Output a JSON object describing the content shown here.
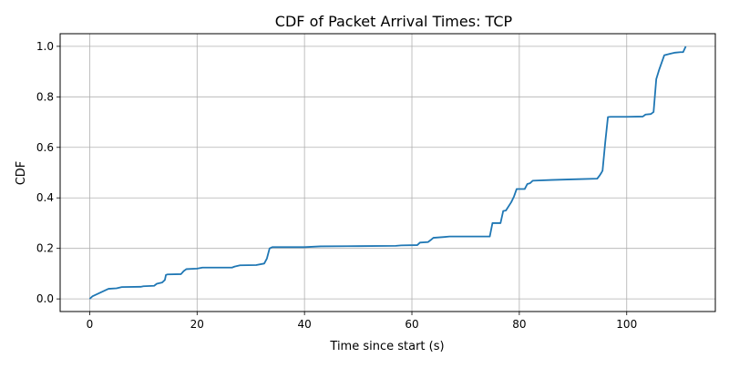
{
  "chart_data": {
    "type": "line",
    "title": "CDF of Packet Arrival Times: TCP",
    "xlabel": "Time since start (s)",
    "ylabel": "CDF",
    "xlim": [
      -5.5,
      116.5
    ],
    "ylim": [
      -0.05,
      1.05
    ],
    "x_ticks": [
      0,
      20,
      40,
      60,
      80,
      100
    ],
    "x_tick_labels": [
      "0",
      "20",
      "40",
      "60",
      "80",
      "100"
    ],
    "y_ticks": [
      0.0,
      0.2,
      0.4,
      0.6,
      0.8,
      1.0
    ],
    "y_tick_labels": [
      "0.0",
      "0.2",
      "0.4",
      "0.6",
      "0.8",
      "1.0"
    ],
    "grid": true,
    "legend": "none",
    "line_color": "#1f77b4",
    "series": [
      {
        "x": [
          0,
          0.5,
          1,
          2,
          3,
          3.5,
          5,
          6,
          9.5,
          10,
          12,
          12.5,
          13.5,
          14,
          14.2,
          14.5,
          17,
          17.5,
          18,
          20,
          21,
          26.5,
          27,
          28,
          31,
          32.5,
          33,
          33.5,
          34,
          40,
          43,
          50,
          57,
          58,
          61,
          61.5,
          63,
          63.5,
          64,
          66,
          67,
          74.5,
          75,
          76.5,
          77,
          77.5,
          78.5,
          79,
          79.5,
          81,
          81.5,
          82,
          82.5,
          86,
          91,
          94.5,
          95,
          95.3,
          95.5,
          96,
          96.5,
          97,
          100,
          103,
          103.5,
          104.5,
          105,
          105.5,
          106,
          107,
          108,
          109,
          110,
          110.5,
          111
        ],
        "y": [
          0.0,
          0.01,
          0.015,
          0.025,
          0.035,
          0.04,
          0.042,
          0.047,
          0.048,
          0.05,
          0.052,
          0.06,
          0.065,
          0.075,
          0.095,
          0.097,
          0.098,
          0.11,
          0.118,
          0.12,
          0.124,
          0.124,
          0.128,
          0.133,
          0.134,
          0.14,
          0.16,
          0.2,
          0.205,
          0.205,
          0.208,
          0.209,
          0.21,
          0.212,
          0.213,
          0.223,
          0.225,
          0.233,
          0.242,
          0.245,
          0.247,
          0.247,
          0.3,
          0.3,
          0.348,
          0.35,
          0.383,
          0.405,
          0.435,
          0.435,
          0.455,
          0.458,
          0.468,
          0.471,
          0.474,
          0.476,
          0.49,
          0.5,
          0.508,
          0.62,
          0.72,
          0.721,
          0.721,
          0.722,
          0.73,
          0.732,
          0.74,
          0.87,
          0.905,
          0.965,
          0.97,
          0.975,
          0.977,
          0.977,
          1.0
        ]
      }
    ]
  }
}
